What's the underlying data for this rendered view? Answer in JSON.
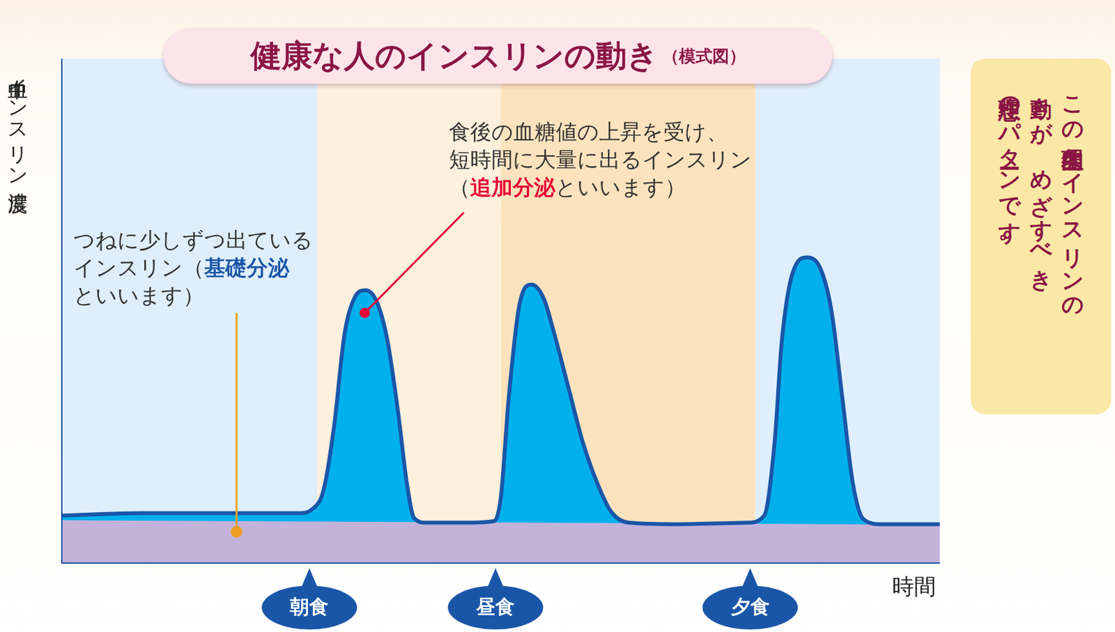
{
  "chart_data": {
    "type": "line",
    "title": "健康な人のインスリンの動き",
    "subtitle": "（模式図）",
    "y_label": "血中インスリン濃度",
    "x_label": "時間",
    "xlim": [
      0,
      100
    ],
    "ylim": [
      0,
      100
    ],
    "tick_labels": false,
    "grid": false,
    "series": [
      {
        "color": "#00b0ec",
        "x": [
          0,
          9.1,
          17.2,
          27.0,
          28.6,
          29.8,
          31.0,
          32.2,
          33.4,
          34.6,
          35.9,
          37.1,
          38.3,
          39.3,
          40.1,
          41.5,
          45.6,
          49.2,
          50.0,
          50.9,
          52.1,
          53.5,
          54.9,
          56.1,
          57.7,
          59.3,
          61.0,
          62.6,
          64.6,
          69.9,
          78.0,
          80.0,
          81.2,
          82.0,
          83.2,
          84.9,
          86.5,
          87.7,
          88.9,
          90.1,
          91.3,
          93.4,
          100
        ],
        "values": [
          9.4,
          9.9,
          9.9,
          9.9,
          10.8,
          14.4,
          27.0,
          45.4,
          52.8,
          54.1,
          51.7,
          44.0,
          29.9,
          15.8,
          9.0,
          8.0,
          8.0,
          8.3,
          13.0,
          32.7,
          51.0,
          55.2,
          52.4,
          45.4,
          34.8,
          24.2,
          15.8,
          10.1,
          8.0,
          7.7,
          8.0,
          9.4,
          24.2,
          43.9,
          57.3,
          60.6,
          58.0,
          49.6,
          32.7,
          15.8,
          8.7,
          7.7,
          7.7
        ]
      },
      {
        "color": "#c3b3da",
        "x": [
          0,
          100
        ],
        "values": [
          8.5,
          7.6
        ]
      }
    ],
    "bands": [
      {
        "from": 0,
        "to": 29.1,
        "color": "#deeefb"
      },
      {
        "from": 29.1,
        "to": 50.0,
        "color": "#fdf0dc"
      },
      {
        "from": 50.0,
        "to": 79.0,
        "color": "#fde3bd"
      },
      {
        "from": 79.0,
        "to": 100,
        "color": "#deeefb"
      }
    ],
    "events": [
      {
        "label": "朝食",
        "x": 28.2
      },
      {
        "label": "昼食",
        "x": 49.4
      },
      {
        "label": "夕食",
        "x": 78.4
      }
    ],
    "annotations": [
      {
        "text": [
          "つねに少しずつ出ている",
          "インスリン（基礎分泌",
          "といいます）"
        ],
        "emphasis": "基礎分泌",
        "x": 19.9,
        "y": 6.2
      },
      {
        "text": [
          "食後の血糖値の上昇を受け、",
          "短時間に大量に出るインスリン",
          "（追加分泌といいます）"
        ],
        "emphasis": "追加分泌",
        "x": 34.5,
        "y": 49.6
      }
    ],
    "note": [
      "この生理的なインスリンの",
      "動きが、めざすべき",
      "理想のパターンです。"
    ]
  }
}
